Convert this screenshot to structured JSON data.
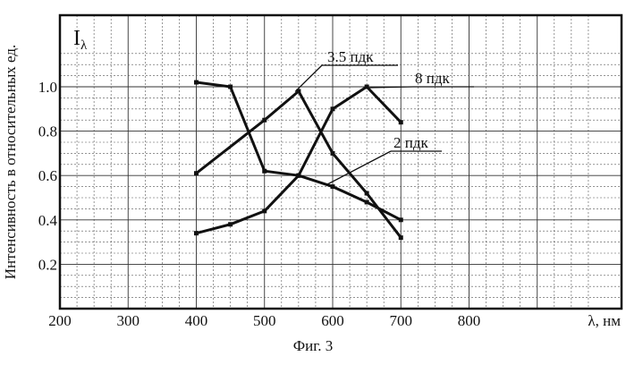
{
  "chart_data": {
    "type": "line",
    "ylabel": "Интенсивность в относительных ед.",
    "y_symbol_base": "I",
    "y_symbol_sub": "λ",
    "xlabel": "λ, нм",
    "xlim": [
      200,
      1000
    ],
    "ylim": [
      0,
      1.2
    ],
    "x_ticks": [
      200,
      300,
      400,
      500,
      600,
      700,
      800
    ],
    "y_ticks": [
      0.2,
      0.4,
      0.6,
      0.8,
      1.0
    ],
    "y_tick_labels": [
      "0.2",
      "0.4",
      "0.6",
      "0.8",
      "1.0"
    ],
    "grid": true,
    "series": [
      {
        "name": "2 пдк",
        "x": [
          400,
          450,
          500,
          550,
          600,
          650,
          700
        ],
        "y": [
          1.02,
          1.0,
          0.62,
          0.6,
          0.55,
          0.48,
          0.4
        ]
      },
      {
        "name": "3.5 пдк",
        "x": [
          400,
          500,
          550,
          600,
          650,
          700
        ],
        "y": [
          0.61,
          0.85,
          0.98,
          0.7,
          0.52,
          0.32
        ]
      },
      {
        "name": "8 пдк",
        "x": [
          400,
          450,
          500,
          550,
          600,
          650,
          700
        ],
        "y": [
          0.34,
          0.38,
          0.44,
          0.6,
          0.9,
          1.0,
          0.84
        ]
      }
    ]
  },
  "caption": "Фиг. 3"
}
